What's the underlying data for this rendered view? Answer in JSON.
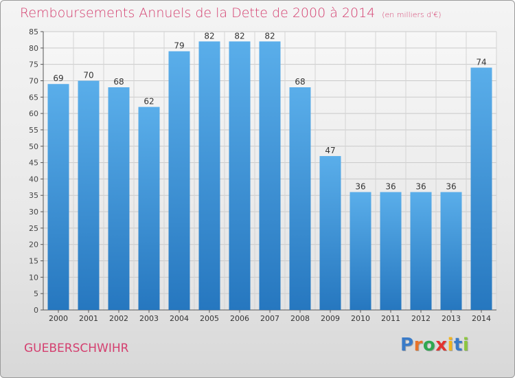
{
  "header": {
    "title": "Remboursements Annuels de la Dette de 2000 à 2014",
    "unit": "(en milliers d'€)"
  },
  "footer": {
    "commune": "GUEBERSCHWIHR",
    "logo": {
      "text": "Proxiti",
      "letters": [
        "P",
        "r",
        "o",
        "x",
        "i",
        "t",
        "i"
      ],
      "letter_colors": [
        "#3a7bc8",
        "#e8732a",
        "#2fa84f",
        "#e3342f",
        "#f2b51d",
        "#3a7bc8",
        "#8cc63f"
      ]
    }
  },
  "colors": {
    "title": "#d43f6f",
    "bar_top": "#5aaeea",
    "bar_bottom": "#2677bf"
  },
  "chart_data": {
    "type": "bar",
    "title": "Remboursements Annuels de la Dette de 2000 à 2014",
    "subtitle": "(en milliers d'€)",
    "categories": [
      "2000",
      "2001",
      "2002",
      "2003",
      "2004",
      "2005",
      "2006",
      "2007",
      "2008",
      "2009",
      "2010",
      "2011",
      "2012",
      "2013",
      "2014"
    ],
    "values": [
      69,
      70,
      68,
      62,
      79,
      82,
      82,
      82,
      68,
      47,
      36,
      36,
      36,
      36,
      74
    ],
    "ylim": [
      0,
      85
    ],
    "yticks": [
      0,
      5,
      10,
      15,
      20,
      25,
      30,
      35,
      40,
      45,
      50,
      55,
      60,
      65,
      70,
      75,
      80,
      85
    ],
    "grid": true,
    "legend": "none"
  }
}
